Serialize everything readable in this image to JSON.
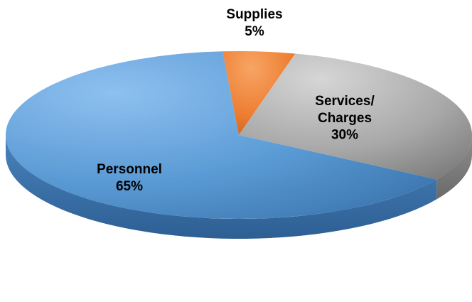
{
  "chart_data": {
    "type": "pie",
    "style": "3d-tilted",
    "slices": [
      {
        "label": "Supplies",
        "percent_label": "5%",
        "value": 5,
        "color": "#ED7D31"
      },
      {
        "label": "Services/ Charges",
        "label_lines": [
          "Services/",
          "Charges"
        ],
        "percent_label": "30%",
        "value": 30,
        "color": "#A5A5A5"
      },
      {
        "label": "Personnel",
        "percent_label": "65%",
        "value": 65,
        "color": "#5B9BD5"
      }
    ]
  }
}
